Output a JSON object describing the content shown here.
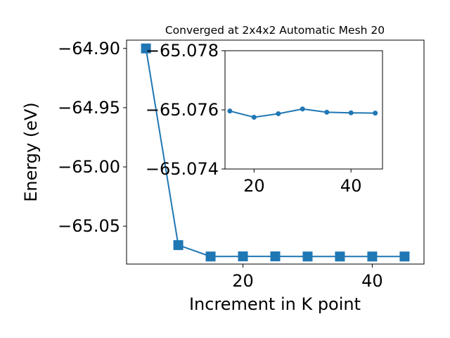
{
  "chart_data": [
    {
      "type": "line",
      "title": "Converged at 2x4x2 Automatic Mesh 20",
      "xlabel": "Increment in K point",
      "ylabel": "Energy (eV)",
      "xlim": [
        2.0,
        48.0
      ],
      "ylim": [
        -65.082,
        -64.893
      ],
      "xticks": [
        20,
        40
      ],
      "xtick_labels": [
        "20",
        "40"
      ],
      "yticks": [
        -64.9,
        -64.95,
        -65.0,
        -65.05
      ],
      "ytick_labels": [
        "−64.90",
        "−64.95",
        "−65.00",
        "−65.05"
      ],
      "grid": false,
      "legend": "none",
      "marker": "square",
      "color": "#1f77b4",
      "series": [
        {
          "x": [
            5,
            10,
            15,
            20,
            25,
            30,
            35,
            40,
            45
          ],
          "y": [
            -64.9,
            -65.066,
            -65.0756,
            -65.0755,
            -65.0755,
            -65.0756,
            -65.0756,
            -65.0756,
            -65.0756
          ]
        }
      ]
    },
    {
      "type": "line",
      "role": "inset",
      "xlim": [
        14.0,
        46.5
      ],
      "ylim": [
        -65.074,
        -65.078
      ],
      "xticks": [
        20,
        40
      ],
      "xtick_labels": [
        "20",
        "40"
      ],
      "yticks": [
        -65.078,
        -65.076,
        -65.074
      ],
      "ytick_labels": [
        "−65.078",
        "−65.076",
        "−65.074"
      ],
      "grid": false,
      "marker": "circle",
      "color": "#1f77b4",
      "series": [
        {
          "x": [
            15,
            20,
            25,
            30,
            35,
            40,
            45
          ],
          "y": [
            -65.07596,
            -65.07575,
            -65.07587,
            -65.07603,
            -65.07592,
            -65.0759,
            -65.07589
          ]
        }
      ]
    }
  ]
}
